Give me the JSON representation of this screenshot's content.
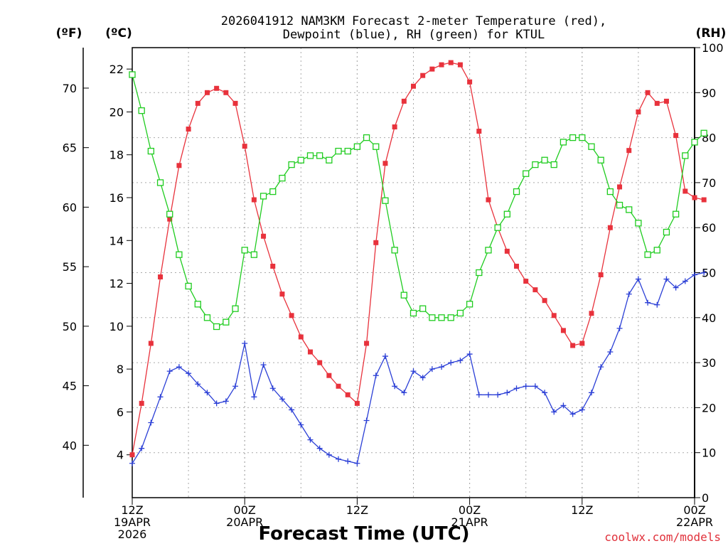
{
  "chart_data": {
    "type": "line",
    "title_lines": [
      "2026041912 NAM3KM Forecast 2-meter Temperature (red),",
      "Dewpoint (blue), RH (green) for KTUL"
    ],
    "xlabel": "Forecast Time (UTC)",
    "credit": "coolwx.com/models",
    "units": {
      "fahrenheit": "(ºF)",
      "celsius": "(ºC)",
      "rh": "(RH)"
    },
    "x_unit": "forecast hour",
    "xlim": [
      0,
      60
    ],
    "x_ticks": [
      {
        "hour": 0,
        "label": "12Z",
        "date": "19APR",
        "year": "2026"
      },
      {
        "hour": 12,
        "label": "00Z",
        "date": "20APR",
        "year": ""
      },
      {
        "hour": 24,
        "label": "12Z",
        "date": "",
        "year": ""
      },
      {
        "hour": 36,
        "label": "00Z",
        "date": "21APR",
        "year": ""
      },
      {
        "hour": 48,
        "label": "12Z",
        "date": "",
        "year": ""
      },
      {
        "hour": 60,
        "label": "00Z",
        "date": "22APR",
        "year": ""
      }
    ],
    "y_celsius": {
      "range": [
        2,
        23
      ],
      "ticks": [
        4,
        6,
        8,
        10,
        12,
        14,
        16,
        18,
        20,
        22
      ]
    },
    "y_fahrenheit": {
      "range": [
        35.6,
        73.4
      ],
      "ticks": [
        40,
        45,
        50,
        55,
        60,
        65,
        70
      ]
    },
    "y_rh": {
      "range": [
        0,
        100
      ],
      "ticks": [
        0,
        10,
        20,
        30,
        40,
        50,
        60,
        70,
        80,
        90,
        100
      ]
    },
    "series": [
      {
        "name": "Temperature",
        "unit": "°C",
        "color": "#e8323c",
        "marker": "filled-square",
        "values": [
          4.0,
          6.4,
          9.2,
          12.3,
          15.0,
          17.5,
          19.2,
          20.4,
          20.9,
          21.1,
          20.9,
          20.4,
          18.4,
          15.9,
          14.2,
          12.8,
          11.5,
          10.5,
          9.5,
          8.8,
          8.3,
          7.7,
          7.2,
          6.8,
          6.4,
          9.2,
          13.9,
          17.6,
          19.3,
          20.5,
          21.2,
          21.7,
          22.0,
          22.2,
          22.3,
          22.2,
          21.4,
          19.1,
          15.9,
          14.6,
          13.5,
          12.8,
          12.1,
          11.7,
          11.2,
          10.5,
          9.8,
          9.1,
          9.2,
          10.6,
          12.4,
          14.6,
          16.5,
          18.2,
          20.0,
          20.9,
          20.4,
          20.5,
          18.9,
          16.3,
          16.0,
          15.9
        ]
      },
      {
        "name": "Dewpoint",
        "unit": "°C",
        "color": "#2b3fd6",
        "marker": "plus",
        "values": [
          3.6,
          4.3,
          5.5,
          6.7,
          7.9,
          8.1,
          7.8,
          7.3,
          6.9,
          6.4,
          6.5,
          7.2,
          9.2,
          6.7,
          8.2,
          7.1,
          6.6,
          6.1,
          5.4,
          4.7,
          4.3,
          4.0,
          3.8,
          3.7,
          3.6,
          5.6,
          7.7,
          8.6,
          7.2,
          6.9,
          7.9,
          7.6,
          8.0,
          8.1,
          8.3,
          8.4,
          8.7,
          6.8,
          6.8,
          6.8,
          6.9,
          7.1,
          7.2,
          7.2,
          6.9,
          6.0,
          6.3,
          5.9,
          6.1,
          6.9,
          8.1,
          8.8,
          9.9,
          11.5,
          12.2,
          11.1,
          11.0,
          12.2,
          11.8,
          12.1,
          12.4,
          12.5
        ]
      },
      {
        "name": "RH",
        "unit": "%",
        "color": "#1fcc1f",
        "marker": "open-square",
        "values": [
          94,
          86,
          77,
          70,
          63,
          54,
          47,
          43,
          40,
          38,
          39,
          42,
          55,
          54,
          67,
          68,
          71,
          74,
          75,
          76,
          76,
          75,
          77,
          77,
          78,
          80,
          78,
          66,
          55,
          45,
          41,
          42,
          40,
          40,
          40,
          41,
          43,
          50,
          55,
          60,
          63,
          68,
          72,
          74,
          75,
          74,
          79,
          80,
          80,
          78,
          75,
          68,
          65,
          64,
          61,
          54,
          55,
          59,
          63,
          76,
          79,
          81
        ]
      }
    ]
  }
}
